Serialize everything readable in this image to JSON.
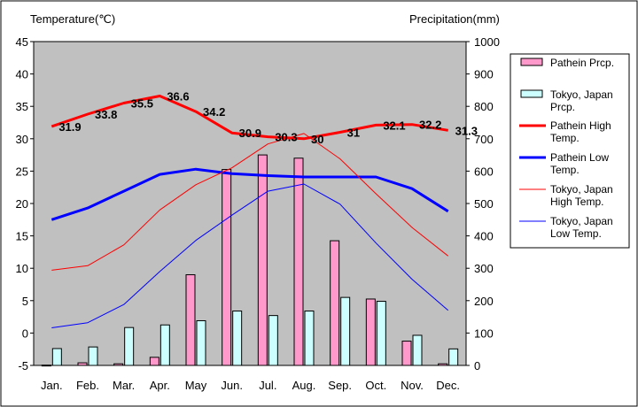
{
  "chart_data": {
    "type": "bar",
    "left_axis_title": "Temperature(℃)",
    "right_axis_title": "Precipitation(mm)",
    "categories": [
      "Jan.",
      "Feb.",
      "Mar.",
      "Apr.",
      "May",
      "Jun.",
      "Jul.",
      "Aug.",
      "Sep.",
      "Oct.",
      "Nov.",
      "Dec."
    ],
    "y_left": {
      "range": [
        -5,
        45
      ],
      "ticks": [
        "-5",
        "0",
        "5",
        "10",
        "15",
        "20",
        "25",
        "30",
        "35",
        "40",
        "45"
      ]
    },
    "y_right": {
      "range": [
        0,
        1000
      ],
      "ticks": [
        "0",
        "100",
        "200",
        "300",
        "400",
        "500",
        "600",
        "700",
        "800",
        "900",
        "1000"
      ]
    },
    "grid": false,
    "legend_position": "right",
    "series": [
      {
        "name": "Pathein Prcp.",
        "kind": "bar",
        "axis": "right",
        "color": "#ff99cc",
        "values": [
          1,
          8,
          5,
          25,
          280,
          605,
          650,
          640,
          385,
          205,
          75,
          5
        ]
      },
      {
        "name": "Tokyo, Japan Prcp.",
        "kind": "bar",
        "axis": "right",
        "color": "#ccffff",
        "values": [
          52,
          57,
          117,
          125,
          138,
          168,
          154,
          168,
          210,
          198,
          93,
          51
        ]
      },
      {
        "name": "Pathein High Temp.",
        "kind": "line",
        "axis": "left",
        "color": "#ff0000",
        "width": 3,
        "values": [
          31.9,
          33.8,
          35.5,
          36.6,
          34.2,
          30.9,
          30.3,
          30,
          31,
          32.1,
          32.2,
          31.3
        ],
        "labels": [
          "31.9",
          "33.8",
          "35.5",
          "36.6",
          "34.2",
          "30.9",
          "30.3",
          "30",
          "31",
          "32.1",
          "32.2",
          "31.3"
        ]
      },
      {
        "name": "Pathein Low Temp.",
        "kind": "line",
        "axis": "left",
        "color": "#0000ff",
        "width": 3,
        "values": [
          17.5,
          19.3,
          21.9,
          24.5,
          25.3,
          24.6,
          24.3,
          24.1,
          24.1,
          24.1,
          22.3,
          18.8
        ]
      },
      {
        "name": "Tokyo, Japan High Temp.",
        "kind": "line",
        "axis": "left",
        "color": "#ff0000",
        "width": 1,
        "values": [
          9.7,
          10.4,
          13.6,
          19,
          22.9,
          25.5,
          29.2,
          30.8,
          26.9,
          21.5,
          16.3,
          11.9
        ]
      },
      {
        "name": "Tokyo, Japan Low Temp.",
        "kind": "line",
        "axis": "left",
        "color": "#0000ff",
        "width": 1,
        "values": [
          0.8,
          1.6,
          4.4,
          9.5,
          14.3,
          18.2,
          21.9,
          23,
          19.9,
          13.9,
          8.3,
          3.5
        ]
      }
    ]
  },
  "legend": {
    "items": [
      {
        "lines": [
          "Pathein Prcp."
        ],
        "swatch": "box",
        "color": "#ff99cc"
      },
      {
        "lines": [
          "Tokyo, Japan",
          "Prcp."
        ],
        "swatch": "box",
        "color": "#ccffff"
      },
      {
        "lines": [
          "Pathein High",
          "Temp."
        ],
        "swatch": "line",
        "color": "#ff0000",
        "width": 3
      },
      {
        "lines": [
          "Pathein Low",
          "Temp."
        ],
        "swatch": "line",
        "color": "#0000ff",
        "width": 3
      },
      {
        "lines": [
          "Tokyo, Japan",
          "High Temp."
        ],
        "swatch": "line",
        "color": "#ff0000",
        "width": 1
      },
      {
        "lines": [
          "Tokyo, Japan",
          "Low Temp."
        ],
        "swatch": "line",
        "color": "#0000ff",
        "width": 1
      }
    ]
  }
}
